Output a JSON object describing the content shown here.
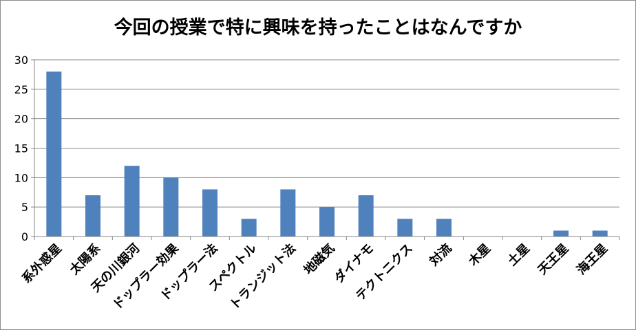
{
  "chart_data": {
    "type": "bar",
    "title": "今回の授業で特に興味を持ったことはなんですか",
    "xlabel": "",
    "ylabel": "",
    "categories": [
      "系外惑星",
      "太陽系",
      "天の川銀河",
      "ドップラー効果",
      "ドップラー法",
      "スペクトル",
      "トランジット法",
      "地磁気",
      "ダイナモ",
      "テクトニクス",
      "対流",
      "木星",
      "土星",
      "天王星",
      "海王星"
    ],
    "values": [
      28,
      7,
      12,
      10,
      8,
      3,
      8,
      5,
      7,
      3,
      3,
      0,
      0,
      1,
      1
    ],
    "ylim": [
      0,
      30
    ],
    "yticks": [
      "0",
      "5",
      "10",
      "15",
      "20",
      "25",
      "30"
    ],
    "grid": true,
    "legend": "none",
    "colors": {
      "bar": "#4f81bd",
      "grid": "#868686",
      "axis": "#868686",
      "text": "#000000"
    }
  }
}
